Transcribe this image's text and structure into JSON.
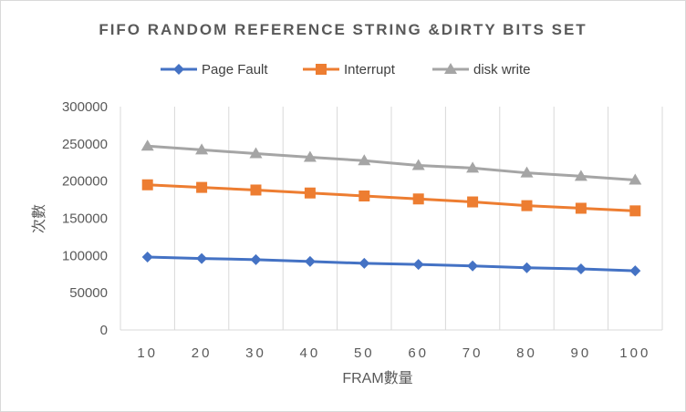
{
  "chart_data": {
    "type": "line",
    "title": "FIFO RANDOM REFERENCE STRING &DIRTY BITS SET",
    "xlabel": "FRAM數量",
    "ylabel": "次數",
    "categories": [
      "10",
      "20",
      "30",
      "40",
      "50",
      "60",
      "70",
      "80",
      "90",
      "100"
    ],
    "ylim": [
      0,
      300000
    ],
    "yticks": [
      "0",
      "50000",
      "100000",
      "150000",
      "200000",
      "250000",
      "300000"
    ],
    "grid": "vertical",
    "legend_position": "top",
    "series": [
      {
        "name": "Page Fault",
        "color": "#4472c4",
        "marker": "diamond",
        "values": [
          98000,
          96000,
          94500,
          92000,
          89500,
          88000,
          86000,
          83500,
          82000,
          79500
        ]
      },
      {
        "name": "Interrupt",
        "color": "#ed7d31",
        "marker": "square",
        "values": [
          195000,
          191500,
          188000,
          184000,
          180000,
          176000,
          172000,
          167000,
          163500,
          160000
        ]
      },
      {
        "name": "disk write",
        "color": "#a5a5a5",
        "marker": "triangle",
        "values": [
          247000,
          242000,
          237000,
          232000,
          227500,
          221000,
          217500,
          211000,
          206500,
          201500
        ]
      }
    ]
  }
}
